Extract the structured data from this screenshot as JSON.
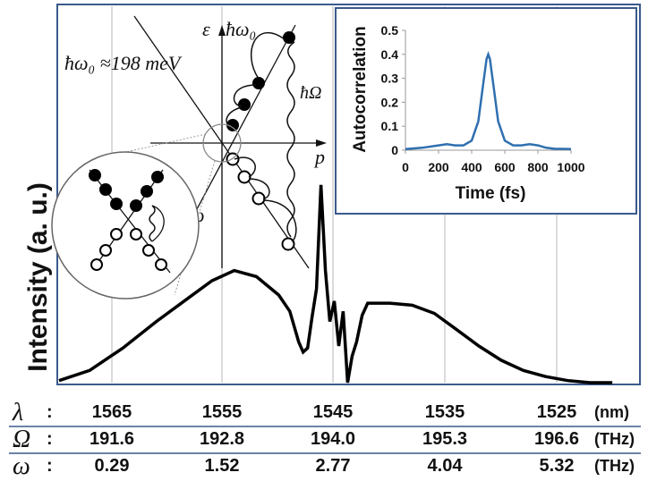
{
  "chart_data": [
    {
      "type": "line",
      "ylabel": "Intensity  (a. u.)",
      "grid": "vertical",
      "x_rows": [
        {
          "symbol": "λ",
          "sep": ":",
          "unit": "(nm)",
          "ticks": [
            "1565",
            "1555",
            "1545",
            "1535",
            "1525"
          ]
        },
        {
          "symbol": "Ω",
          "sep": ":",
          "unit": "(THz)",
          "ticks": [
            "191.6",
            "192.8",
            "194.0",
            "195.3",
            "196.6"
          ]
        },
        {
          "symbol": "ω",
          "sep": ":",
          "unit": "(THz)",
          "ticks": [
            "0.29",
            "1.52",
            "2.77",
            "4.04",
            "5.32"
          ]
        }
      ],
      "series": [
        {
          "x": [
            1570,
            1567,
            1564,
            1561,
            1558,
            1556,
            1554,
            1552,
            1550,
            1549,
            1548.2,
            1547.8,
            1547.4,
            1547.0,
            1546.6,
            1546.2,
            1545.8,
            1545.4,
            1545.0,
            1544.6,
            1544.2,
            1543.8,
            1543.4,
            1543.0,
            1542.5,
            1542.0,
            1541.0,
            1540.0,
            1538.0,
            1536.0,
            1534.0,
            1532.0,
            1530.0,
            1528.0,
            1526.0,
            1524.0,
            1522.0,
            1520.0
          ],
          "y": [
            0.01,
            0.06,
            0.17,
            0.3,
            0.42,
            0.5,
            0.55,
            0.52,
            0.43,
            0.35,
            0.2,
            0.15,
            0.17,
            0.32,
            0.46,
            0.97,
            0.55,
            0.3,
            0.4,
            0.18,
            0.35,
            0.0,
            0.13,
            0.2,
            0.33,
            0.39,
            0.39,
            0.39,
            0.38,
            0.34,
            0.26,
            0.18,
            0.11,
            0.06,
            0.03,
            0.01,
            0.0,
            0.0
          ]
        }
      ]
    },
    {
      "type": "line",
      "xlabel": "Time (fs)",
      "ylabel": "Autocorrelation",
      "xlim": [
        0,
        1000
      ],
      "ylim": [
        0,
        0.5
      ],
      "xticks": [
        "0",
        "200",
        "400",
        "600",
        "800",
        "1000"
      ],
      "yticks": [
        "0",
        "0.1",
        "0.2",
        "0.3",
        "0.4",
        "0.5"
      ],
      "series": [
        {
          "x": [
            0,
            100,
            200,
            250,
            300,
            350,
            400,
            440,
            470,
            490,
            500,
            510,
            530,
            560,
            600,
            650,
            700,
            750,
            800,
            850,
            900,
            1000
          ],
          "y": [
            0.005,
            0.01,
            0.02,
            0.025,
            0.02,
            0.02,
            0.04,
            0.12,
            0.28,
            0.38,
            0.4,
            0.38,
            0.28,
            0.12,
            0.04,
            0.02,
            0.02,
            0.025,
            0.02,
            0.01,
            0.006,
            0.005
          ]
        }
      ],
      "line_color": "#2f6fb0"
    }
  ],
  "diagram": {
    "energy_label": "ε",
    "momentum_label": "p",
    "top_photon": "ħω₀",
    "photon_value": "ħω₀ ≈198 meV",
    "phonon_big": "ħΩ",
    "phonon_small": "ħω"
  },
  "colors": {
    "frame": "#3a5a8c",
    "curve": "#000000",
    "grid": "#cfcfcf",
    "inset_line": "#2f6fb0"
  }
}
